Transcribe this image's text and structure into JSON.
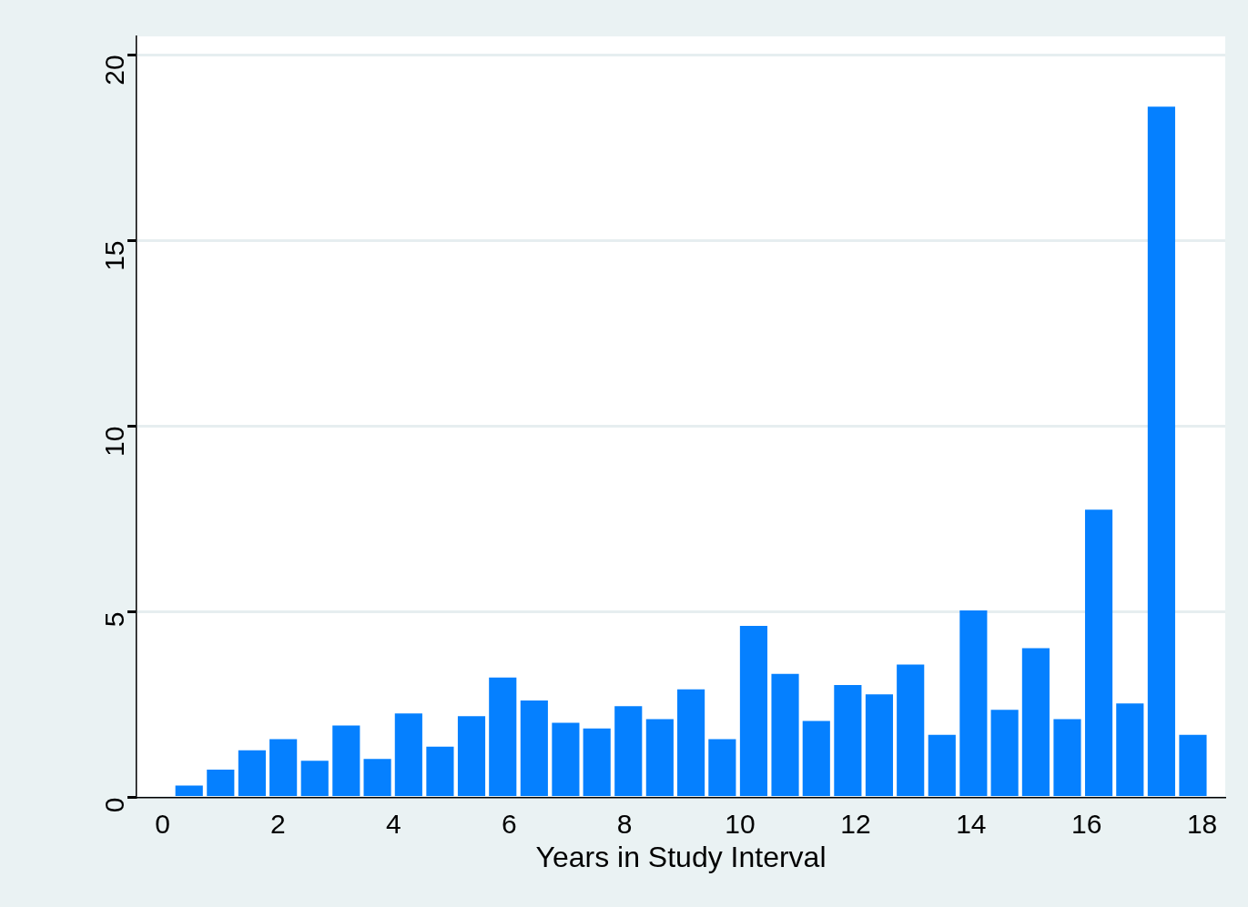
{
  "chart_data": {
    "type": "histogram",
    "xlabel": "Years in Study Interval",
    "bins": [
      0.19,
      0.73,
      1.28,
      1.82,
      2.36,
      2.91,
      3.45,
      3.99,
      4.53,
      5.08,
      5.62,
      6.16,
      6.71,
      7.25,
      7.79,
      8.34,
      8.88,
      9.42,
      9.96,
      10.51,
      11.05,
      11.59,
      12.14,
      12.68,
      13.22,
      13.77,
      14.31,
      14.85,
      15.39,
      15.94,
      16.48,
      17.02,
      17.57,
      18.11
    ],
    "values": [
      0.32,
      0.75,
      1.27,
      1.57,
      0.99,
      1.94,
      1.04,
      2.26,
      1.37,
      2.19,
      3.23,
      2.61,
      2.01,
      1.86,
      2.46,
      2.11,
      2.91,
      1.57,
      4.62,
      3.33,
      2.06,
      3.03,
      2.78,
      3.58,
      1.69,
      5.04,
      2.36,
      4.02,
      2.11,
      7.75,
      2.53,
      18.61,
      1.69
    ],
    "color": "#0580ff",
    "xlim": [
      -0.45,
      18.4
    ],
    "xticks": [
      0,
      2,
      4,
      6,
      8,
      10,
      12,
      14,
      16,
      18
    ],
    "ylim": [
      0,
      20.5
    ],
    "yticks": [
      0,
      5,
      10,
      15,
      20
    ],
    "grid": "y",
    "legend": false
  }
}
